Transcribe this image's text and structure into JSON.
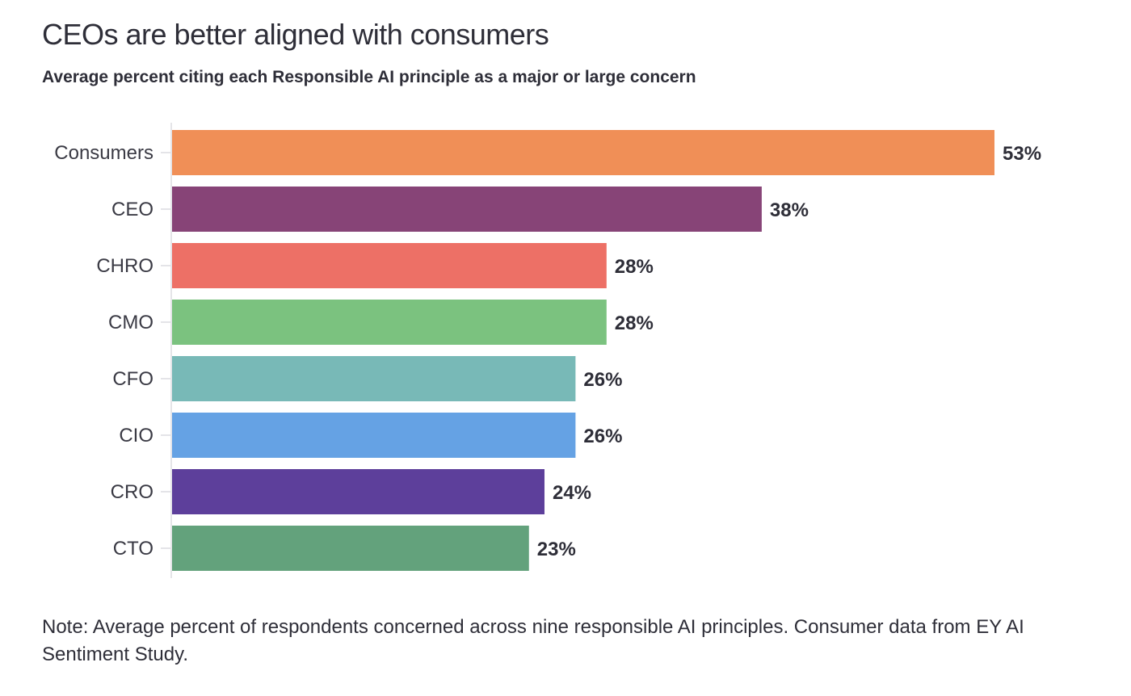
{
  "chart_data": {
    "type": "bar",
    "orientation": "horizontal",
    "title": "CEOs are better aligned with consumers",
    "subtitle": "Average percent citing each Responsible AI principle as a major or large concern",
    "xlabel": "",
    "ylabel": "",
    "xlim": [
      0,
      53
    ],
    "grid": false,
    "legend": "none",
    "categories": [
      "Consumers",
      "CEO",
      "CHRO",
      "CMO",
      "CFO",
      "CIO",
      "CRO",
      "CTO"
    ],
    "values": [
      53,
      38,
      28,
      28,
      26,
      26,
      24,
      23
    ],
    "value_labels": [
      "53%",
      "38%",
      "28%",
      "28%",
      "26%",
      "26%",
      "24%",
      "23%"
    ],
    "colors": [
      "#f08f57",
      "#874477",
      "#ed7066",
      "#7bc27f",
      "#78b9b7",
      "#65a2e4",
      "#5d3f9b",
      "#63a27c"
    ],
    "note": "Note: Average percent of respondents concerned across nine responsible AI principles. Consumer data from EY AI Sentiment Study."
  }
}
